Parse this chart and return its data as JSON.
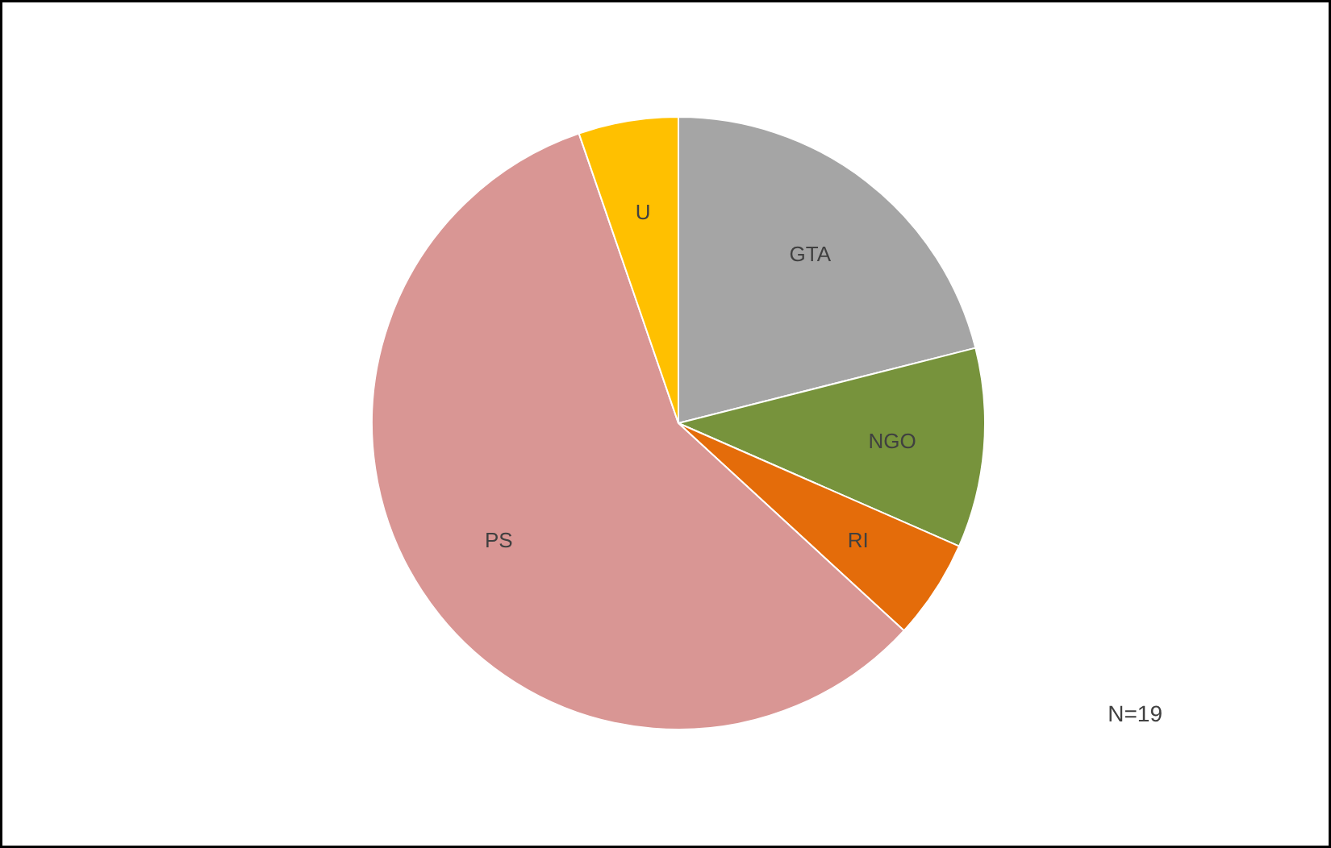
{
  "chart_data": {
    "type": "pie",
    "categories": [
      "GTA",
      "NGO",
      "RI",
      "PS",
      "U"
    ],
    "values": [
      21.05,
      10.53,
      5.26,
      57.9,
      5.26
    ],
    "colors": [
      "#a5a5a5",
      "#77933c",
      "#e46c0a",
      "#d99694",
      "#ffc000"
    ],
    "annotations": [
      "N=19"
    ]
  }
}
